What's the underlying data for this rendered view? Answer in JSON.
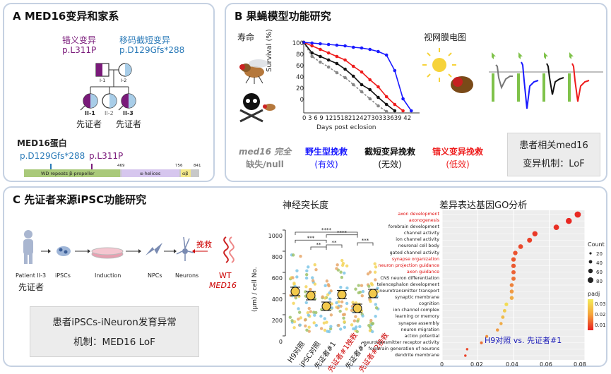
{
  "panel_a": {
    "title": "A MED16变异和家系",
    "missense_label": "错义变异",
    "missense_variant": "p.L311P",
    "frameshift_label": "移码截短变异",
    "frameshift_variant": "p.D129Gfs*288",
    "individuals": [
      "I-1",
      "I-2",
      "II-1",
      "II-2",
      "II-3"
    ],
    "proband_label": "先证者",
    "protein_title": "MED16蛋白",
    "protein_var1": "p.D129Gfs*288",
    "protein_var2": "p.L311P",
    "domains": [
      "WD repeats β-propeller",
      "α-helices",
      "αβ"
    ],
    "positions": [
      "469",
      "756",
      "841"
    ]
  },
  "panel_b": {
    "title": "B 果蝇模型功能研究",
    "lifespan_label": "寿命",
    "erg_label": "视网膜电图",
    "y_axis": "Survival (%)",
    "x_axis": "Days post eclosion",
    "y_ticks": [
      "0",
      "20",
      "40",
      "60",
      "80",
      "100"
    ],
    "x_ticks": "0 3 6 9 12151821242730333639 42",
    "legend": [
      {
        "line1": "med16 完全",
        "line2": "缺失/null",
        "color": "#888888"
      },
      {
        "line1": "野生型挽救",
        "line2": "(有效)",
        "color": "#1a1aff"
      },
      {
        "line1": "截短变异挽救",
        "line2": "(无效)",
        "color": "#111111"
      },
      {
        "line1": "错义变异挽救",
        "line2": "(低效)",
        "color": "#ee1c1c"
      }
    ],
    "conclusion_line1": "患者相关med16",
    "conclusion_line2": "变异机制：LoF"
  },
  "panel_c": {
    "title": "C 先证者来源iPSC功能研究",
    "workflow": [
      "Patient II-3",
      "iPSCs",
      "Induction",
      "NPCs",
      "Neurons"
    ],
    "proband_label": "先证者",
    "rescue_label": "挽救",
    "wt_label": "WT",
    "gene_label": "MED16",
    "conclusion_line1": "患者iPSCs-iNeuron发育异常",
    "conclusion_line2": "机制：MED16 LoF",
    "neurite_title": "神经突长度",
    "neurite_ylabel": "(μm) / cell No.",
    "neurite_yticks": [
      "0",
      "200",
      "400",
      "600",
      "800",
      "1000"
    ],
    "neurite_groups": [
      "H9对照",
      "iPSC对照",
      "先证者#1",
      "先证者#1挽救",
      "先证者#2",
      "先证者#2挽救"
    ],
    "sig_labels": [
      "****",
      "***",
      "****",
      "**",
      "**",
      "***"
    ],
    "go_title": "差异表达基因GO分析",
    "go_comparison": "H9对照 vs. 先证者#1",
    "go_x_ticks": [
      "0",
      "0.02",
      "0.04",
      "0.06",
      "0.08"
    ],
    "count_legend_title": "Count",
    "count_legend": [
      "20",
      "40",
      "60",
      "80"
    ],
    "padj_title": "padj",
    "padj_ticks": [
      "0.03",
      "0.02",
      "0.01"
    ]
  },
  "chart_data": [
    {
      "type": "line",
      "title": "",
      "xlabel": "Days post eclosion",
      "ylabel": "Survival (%)",
      "xlim": [
        0,
        42
      ],
      "ylim": [
        0,
        100
      ],
      "series": [
        {
          "name": "野生型挽救",
          "color": "#1a1aff",
          "x": [
            0,
            3,
            6,
            9,
            12,
            15,
            18,
            21,
            24,
            27,
            30,
            33,
            36,
            39
          ],
          "values": [
            100,
            99,
            98,
            97,
            96,
            95,
            93,
            92,
            90,
            87,
            82,
            60,
            20,
            3
          ]
        },
        {
          "name": "错义变异挽救",
          "color": "#ee1c1c",
          "x": [
            0,
            3,
            6,
            9,
            12,
            15,
            18,
            21,
            24,
            27,
            30,
            33,
            36
          ],
          "values": [
            100,
            95,
            90,
            85,
            80,
            75,
            66,
            58,
            47,
            37,
            23,
            12,
            3
          ]
        },
        {
          "name": "截短变异挽救",
          "color": "#111111",
          "x": [
            0,
            3,
            6,
            9,
            12,
            15,
            18,
            21,
            24,
            27,
            30,
            33
          ],
          "values": [
            100,
            85,
            80,
            75,
            70,
            62,
            52,
            40,
            33,
            22,
            12,
            3
          ]
        },
        {
          "name": "med16 完全缺失/null",
          "color": "#888888",
          "x": [
            0,
            3,
            6,
            9,
            12,
            15,
            18,
            21,
            24,
            27,
            30
          ],
          "values": [
            100,
            80,
            72,
            65,
            57,
            50,
            40,
            30,
            20,
            10,
            2
          ]
        }
      ]
    },
    {
      "type": "scatter",
      "title": "神经突长度",
      "ylabel": "(μm) / cell No.",
      "ylim": [
        0,
        1000
      ],
      "categories": [
        "H9对照",
        "iPSC对照",
        "先证者#1",
        "先证者#1挽救",
        "先证者#2",
        "先证者#2挽救"
      ],
      "values": [
        420,
        380,
        280,
        390,
        260,
        400
      ]
    },
    {
      "type": "scatter",
      "title": "差异表达基因GO分析",
      "xlim": [
        0,
        0.08
      ],
      "categories": [
        "axon development",
        "axonogenesis",
        "forebrain development",
        "channel activity",
        "ion channel activity",
        "neuronal cell body",
        "gated channel activity",
        "synapse organization",
        "neuron projection guidance",
        "axon guidance",
        "CNS neuron differentiation",
        "telencephalon development",
        "neurotransmitter transport",
        "synaptic membrane",
        "cognition",
        "ion channel complex",
        "learning or memory",
        "synapse assembly",
        "neuron migration",
        "action potential",
        "neurotransmitter receptor activity",
        "forebrain generation of neurons",
        "dendrite membrane"
      ],
      "values": [
        0.076,
        0.071,
        0.064,
        0.052,
        0.049,
        0.044,
        0.041,
        0.04,
        0.04,
        0.04,
        0.04,
        0.039,
        0.039,
        0.039,
        0.036,
        0.035,
        0.034,
        0.033,
        0.031,
        0.025,
        0.022,
        0.014,
        0.013
      ],
      "counts": [
        90,
        85,
        75,
        70,
        65,
        60,
        55,
        55,
        55,
        50,
        50,
        45,
        45,
        45,
        40,
        35,
        35,
        30,
        30,
        25,
        25,
        15,
        15
      ],
      "padj": [
        0.006,
        0.006,
        0.007,
        0.008,
        0.009,
        0.01,
        0.011,
        0.012,
        0.012,
        0.013,
        0.015,
        0.017,
        0.02,
        0.022,
        0.028,
        0.026,
        0.024,
        0.022,
        0.02,
        0.019,
        0.015,
        0.01,
        0.009
      ],
      "highlight_red": [
        "axon development",
        "axonogenesis",
        "synapse organization",
        "neuron projection guidance",
        "axon guidance"
      ]
    }
  ]
}
